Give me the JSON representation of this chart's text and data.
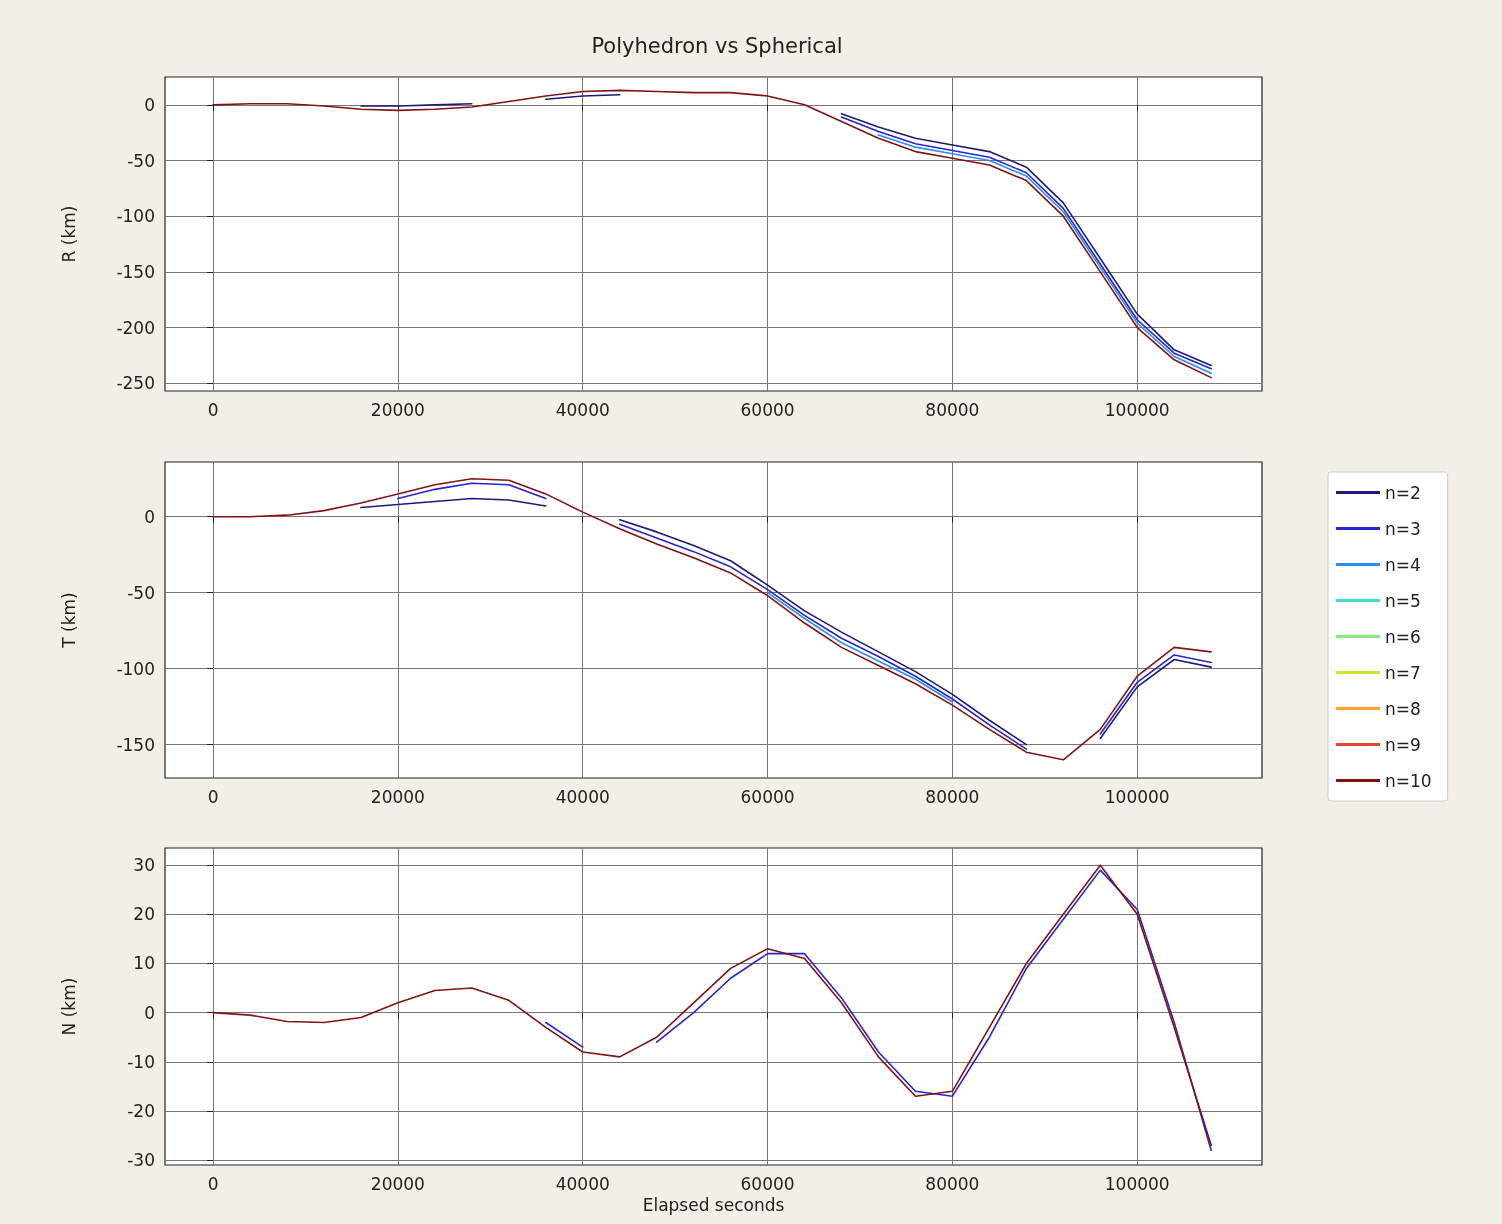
{
  "chart_data": [
    {
      "type": "line",
      "title": "Polyhedron vs Spherical",
      "ylabel": "R (km)",
      "grid": true,
      "x": [
        0,
        4000,
        8000,
        12000,
        16000,
        20000,
        24000,
        28000,
        32000,
        36000,
        40000,
        44000,
        48000,
        52000,
        56000,
        60000,
        64000,
        68000,
        72000,
        76000,
        80000,
        84000,
        88000,
        92000,
        96000,
        100000,
        104000,
        108000
      ],
      "xlim": [
        -5200,
        113500
      ],
      "xticks": [
        0,
        20000,
        40000,
        60000,
        80000,
        100000
      ],
      "ylim": [
        -257,
        25
      ],
      "yticks": [
        -250,
        -200,
        -150,
        -100,
        -50,
        0
      ],
      "series": [
        {
          "color": "#1c1c78",
          "values": [
            null,
            null,
            null,
            null,
            -1,
            -1,
            0,
            1,
            null,
            5,
            8,
            9,
            null,
            null,
            null,
            null,
            null,
            -8,
            -20,
            -30,
            -36,
            -42,
            -56,
            -88,
            -138,
            -188,
            -220,
            -234
          ]
        },
        {
          "color": "#2424d8",
          "values": [
            null,
            null,
            null,
            null,
            null,
            null,
            null,
            null,
            null,
            null,
            null,
            null,
            null,
            null,
            null,
            null,
            null,
            -11,
            -24,
            -35,
            -41,
            -47,
            -61,
            -93,
            -143,
            -193,
            -223,
            -237
          ]
        },
        {
          "color": "#2c8cff",
          "values": [
            null,
            null,
            null,
            null,
            null,
            null,
            null,
            null,
            null,
            null,
            null,
            null,
            null,
            null,
            null,
            null,
            null,
            null,
            -27,
            -38,
            -44,
            -50,
            -64,
            -96,
            -146,
            -196,
            -226,
            -241
          ]
        },
        {
          "color": "#801414",
          "values": [
            0,
            1,
            1,
            -1,
            -4,
            -5,
            -4,
            -2,
            3,
            8,
            12,
            13,
            12,
            11,
            11,
            8,
            0,
            -15,
            -30,
            -42,
            -48,
            -54,
            -68,
            -100,
            -150,
            -200,
            -229,
            -245
          ]
        }
      ]
    },
    {
      "type": "line",
      "ylabel": "T (km)",
      "grid": true,
      "legend": "right",
      "x": [
        0,
        4000,
        8000,
        12000,
        16000,
        20000,
        24000,
        28000,
        32000,
        36000,
        40000,
        44000,
        48000,
        52000,
        56000,
        60000,
        64000,
        68000,
        72000,
        76000,
        80000,
        84000,
        88000,
        92000,
        96000,
        100000,
        104000,
        108000
      ],
      "xlim": [
        -5200,
        113500
      ],
      "xticks": [
        0,
        20000,
        40000,
        60000,
        80000,
        100000
      ],
      "ylim": [
        -172,
        36
      ],
      "yticks": [
        -150,
        -100,
        -50,
        0
      ],
      "series": [
        {
          "name": "n=2",
          "color": "#1c1c78",
          "values": [
            null,
            null,
            null,
            null,
            6,
            8,
            10,
            12,
            11,
            7,
            null,
            -2,
            -10,
            -19,
            -29,
            -45,
            -62,
            -76,
            -89,
            -102,
            -117,
            -134,
            -150,
            null,
            -146,
            -112,
            -94,
            -99
          ]
        },
        {
          "name": "n=3",
          "color": "#2424d8",
          "values": [
            null,
            null,
            null,
            null,
            null,
            12,
            18,
            22,
            21,
            12,
            null,
            -5,
            -14,
            -23,
            -33,
            -48,
            -65,
            -80,
            -92,
            -105,
            -120,
            -137,
            -153,
            null,
            -143,
            -109,
            -91,
            -96
          ]
        },
        {
          "name": "n=4",
          "color": "#2c8cff",
          "values": [
            null,
            null,
            null,
            null,
            null,
            null,
            null,
            null,
            null,
            null,
            null,
            null,
            null,
            null,
            null,
            -50,
            -67,
            -83,
            -95,
            -107,
            -122,
            null,
            null,
            null,
            null,
            null,
            null,
            null
          ]
        },
        {
          "name": "n=5",
          "color": "#40dcd0",
          "values": [
            null,
            null,
            null,
            null,
            null,
            null,
            null,
            null,
            null,
            null,
            null,
            null,
            null,
            null,
            null,
            null,
            null,
            null,
            null,
            null,
            null,
            null,
            null,
            null,
            null,
            null,
            null,
            null
          ]
        },
        {
          "name": "n=6",
          "color": "#80ec80",
          "values": [
            null,
            null,
            null,
            null,
            null,
            null,
            null,
            null,
            null,
            null,
            null,
            null,
            null,
            null,
            null,
            null,
            null,
            null,
            null,
            null,
            null,
            null,
            null,
            null,
            null,
            null,
            null,
            null
          ]
        },
        {
          "name": "n=7",
          "color": "#d4e430",
          "values": [
            null,
            null,
            null,
            null,
            null,
            null,
            null,
            null,
            null,
            null,
            null,
            null,
            null,
            null,
            null,
            null,
            null,
            null,
            null,
            null,
            null,
            null,
            null,
            null,
            null,
            null,
            null,
            null
          ]
        },
        {
          "name": "n=8",
          "color": "#ffa424",
          "values": [
            null,
            null,
            null,
            null,
            null,
            null,
            null,
            null,
            null,
            null,
            null,
            null,
            null,
            null,
            null,
            null,
            null,
            null,
            null,
            null,
            null,
            null,
            null,
            null,
            null,
            null,
            null,
            null
          ]
        },
        {
          "name": "n=9",
          "color": "#e8442c",
          "values": [
            null,
            null,
            null,
            null,
            null,
            null,
            null,
            null,
            null,
            null,
            null,
            null,
            null,
            null,
            null,
            null,
            null,
            null,
            null,
            null,
            null,
            null,
            null,
            null,
            null,
            null,
            null,
            null
          ]
        },
        {
          "name": "n=10",
          "color": "#801414",
          "values": [
            0,
            0,
            1,
            4,
            9,
            15,
            21,
            25,
            24,
            15,
            3,
            -8,
            -18,
            -27,
            -37,
            -52,
            -70,
            -86,
            -98,
            -110,
            -124,
            -140,
            -155,
            -160,
            -140,
            -105,
            -86,
            -89
          ]
        }
      ]
    },
    {
      "type": "line",
      "ylabel": "N (km)",
      "xlabel": "Elapsed seconds",
      "grid": true,
      "x": [
        0,
        4000,
        8000,
        12000,
        16000,
        20000,
        24000,
        28000,
        32000,
        36000,
        40000,
        44000,
        48000,
        52000,
        56000,
        60000,
        64000,
        68000,
        72000,
        76000,
        80000,
        84000,
        88000,
        92000,
        96000,
        100000,
        104000,
        108000
      ],
      "xlim": [
        -5200,
        113500
      ],
      "xticks": [
        0,
        20000,
        40000,
        60000,
        80000,
        100000
      ],
      "ylim": [
        -31,
        33.5
      ],
      "yticks": [
        -30,
        -20,
        -10,
        0,
        10,
        20,
        30
      ],
      "series": [
        {
          "color": "#2424d8",
          "values": [
            null,
            null,
            null,
            null,
            null,
            null,
            null,
            null,
            null,
            -2,
            -7,
            null,
            -6,
            0,
            7,
            12,
            12,
            3,
            -8,
            -16,
            -17,
            -5,
            9,
            19,
            29,
            21,
            -2,
            -28
          ]
        },
        {
          "color": "#801414",
          "values": [
            0,
            -0.5,
            -1.8,
            -2,
            -1,
            2,
            4.5,
            5,
            2.5,
            -3,
            -8,
            -9,
            -5,
            2,
            9,
            13,
            11,
            2,
            -9,
            -17,
            -16,
            -3,
            10,
            20,
            30,
            20,
            -3,
            -27
          ]
        }
      ]
    }
  ]
}
